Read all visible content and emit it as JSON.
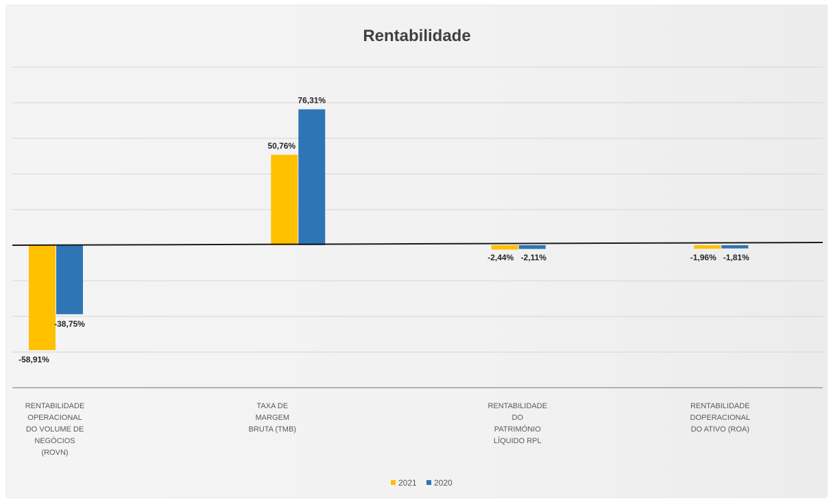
{
  "chart_data": {
    "type": "bar",
    "title": "Rentabilidade",
    "xlabel": "",
    "ylabel": "",
    "ylim": [
      -80,
      100
    ],
    "grid": true,
    "legend_position": "bottom",
    "categories": [
      [
        "RENTABILIDADE",
        "OPERACIONAL",
        "DO VOLUME DE",
        "NEGÓCIOS",
        "(ROVN)"
      ],
      [
        "TAXA DE",
        "MARGEM",
        "BRUTA (TMB)"
      ],
      [
        "RENTABILIDADE",
        "DO",
        "PATRIMÓNIO",
        "LÍQUIDO RPL"
      ],
      [
        "RENTABILIDADE",
        "DOPERACIONAL",
        "DO ATIVO (ROA)"
      ]
    ],
    "series": [
      {
        "name": "2021",
        "color": "#FFC000",
        "values": [
          -58.91,
          50.76,
          -2.44,
          -1.96
        ],
        "labels": [
          "-58,91%",
          "50,76%",
          "-2,44%",
          "-1,96%"
        ]
      },
      {
        "name": "2020",
        "color": "#2E75B6",
        "values": [
          -38.75,
          76.31,
          -2.11,
          -1.81
        ],
        "labels": [
          "-38,75%",
          "76,31%",
          "-2,11%",
          "-1,81%"
        ]
      }
    ]
  }
}
